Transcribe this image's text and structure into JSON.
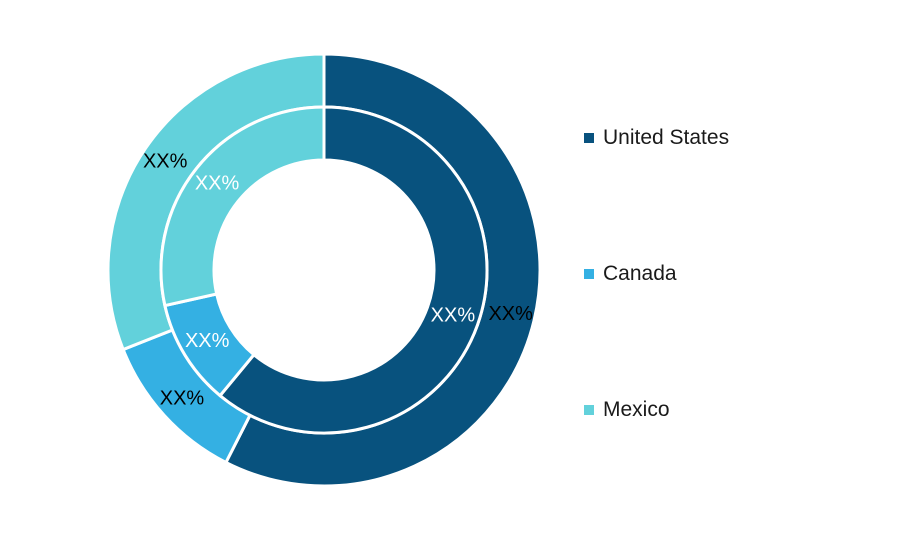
{
  "chart_data": {
    "type": "pie",
    "subtype": "nested-donut",
    "categories": [
      "United States",
      "Canada",
      "Mexico"
    ],
    "colors": [
      "#08527e",
      "#34b0e3",
      "#62d1db"
    ],
    "series": [
      {
        "ring": "outer",
        "values": [
          57.5,
          11.5,
          31.0
        ],
        "labels": [
          "XX%",
          "XX%",
          "XX%"
        ]
      },
      {
        "ring": "inner",
        "values": [
          61.0,
          10.5,
          28.5
        ],
        "labels": [
          "XX%",
          "XX%",
          "XX%"
        ]
      }
    ],
    "legend_position": "right"
  }
}
